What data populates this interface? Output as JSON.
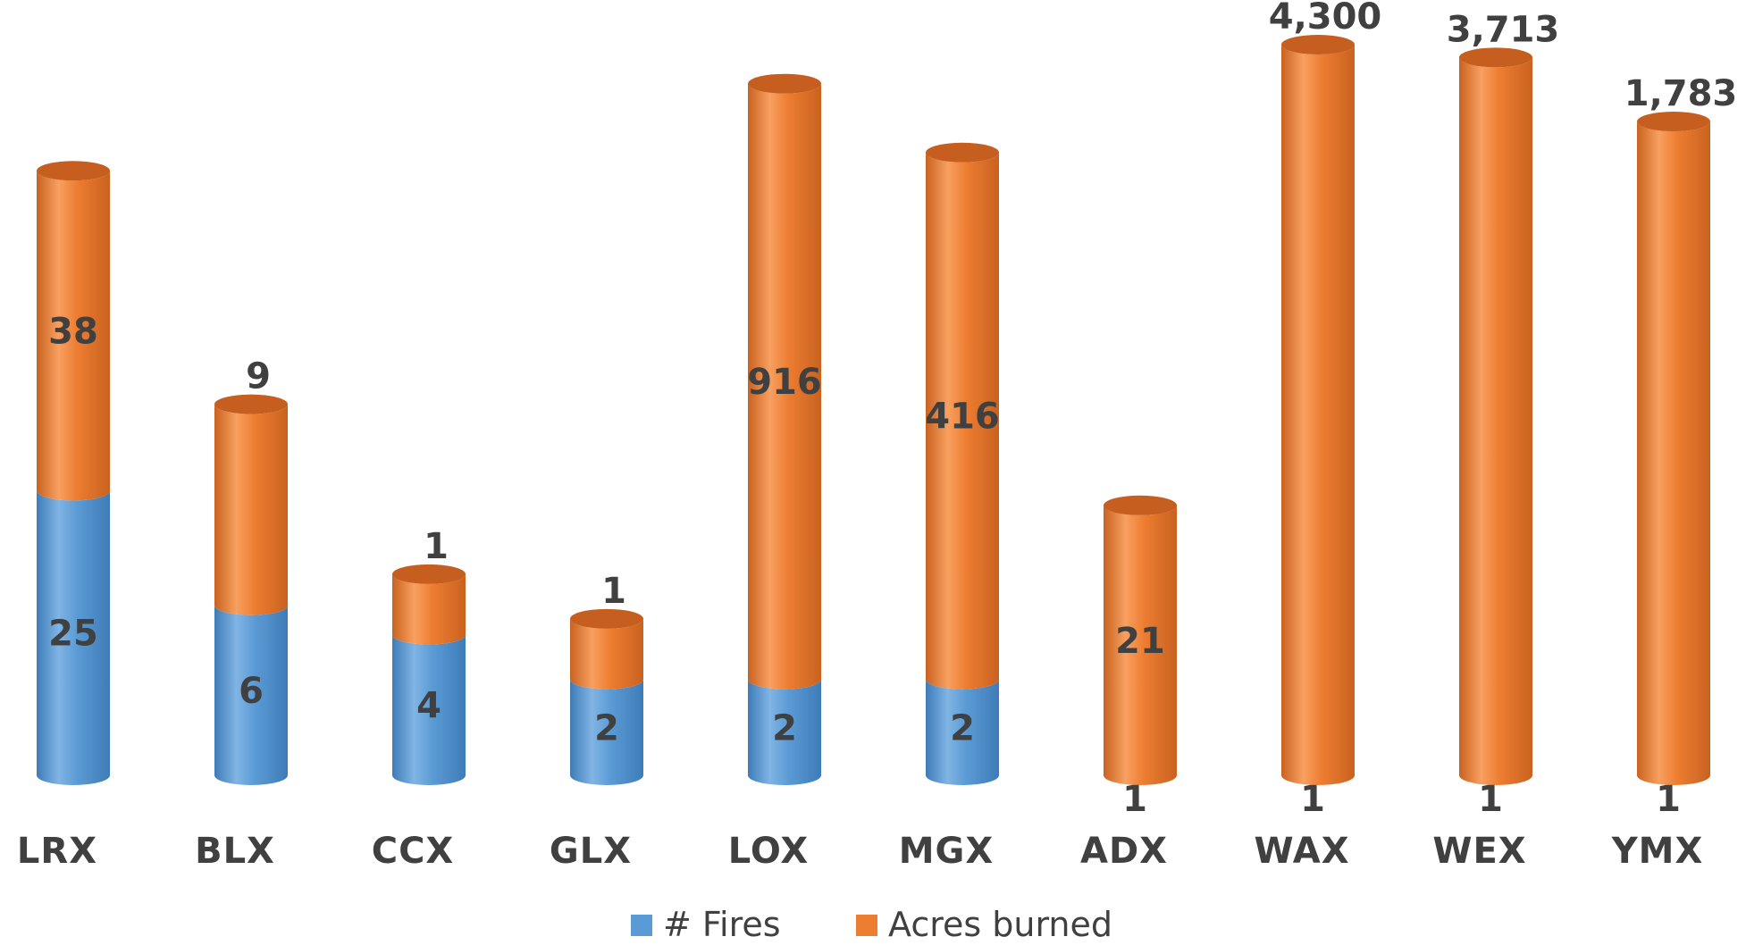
{
  "chart_data": {
    "type": "bar",
    "stacked": true,
    "style": "3d-cylinder",
    "categories": [
      "LRX",
      "BLX",
      "CCX",
      "GLX",
      "LOX",
      "MGX",
      "ADX",
      "WAX",
      "WEX",
      "YMX"
    ],
    "series": [
      {
        "name": "# Fires",
        "color": "#5B9BD5",
        "values": [
          25,
          6,
          4,
          2,
          2,
          2,
          1,
          1,
          1,
          1
        ]
      },
      {
        "name": "Acres burned",
        "color": "#ED7D31",
        "values": [
          38,
          9,
          1,
          1,
          916,
          416,
          21,
          4300,
          3713,
          1783
        ]
      }
    ],
    "data_labels": {
      "fires": [
        "25",
        "6",
        "4",
        "2",
        "2",
        "2",
        "1",
        "1",
        "1",
        "1"
      ],
      "acres": [
        "38",
        "9",
        "1",
        "1",
        "916",
        "416",
        "21",
        "4,300",
        "3,713",
        "1,783"
      ]
    },
    "legend": {
      "position": "bottom",
      "entries": [
        "# Fires",
        "Acres burned"
      ]
    },
    "grid": false,
    "axes_visible": false
  }
}
